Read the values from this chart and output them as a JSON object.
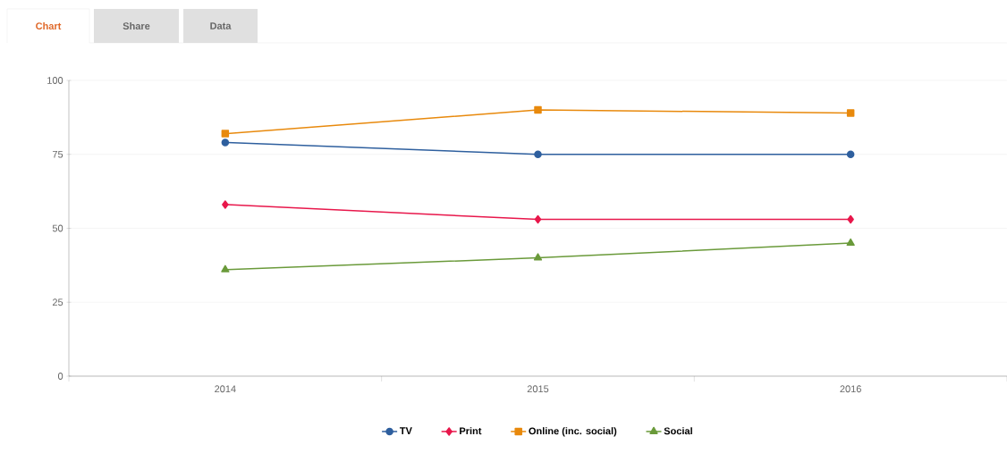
{
  "chart_data": {
    "type": "line",
    "categories": [
      "2014",
      "2015",
      "2016"
    ],
    "series": [
      {
        "name": "TV",
        "color": "#2e5f9e",
        "marker": "circle",
        "values": [
          79,
          75,
          75
        ]
      },
      {
        "name": "Print",
        "color": "#e8174b",
        "marker": "diamond",
        "values": [
          58,
          53,
          53
        ]
      },
      {
        "name": "Online (inc. social)",
        "color": "#e8890c",
        "marker": "square",
        "values": [
          82,
          90,
          89
        ]
      },
      {
        "name": "Social",
        "color": "#6a9a3a",
        "marker": "triangle",
        "values": [
          36,
          40,
          45
        ]
      }
    ],
    "ylim": [
      0,
      100
    ],
    "yticks": [
      0,
      25,
      50,
      75,
      100
    ],
    "grid": "y",
    "legend": "bottom",
    "line_style": "solid",
    "annotations": [
      "Chart",
      "Share",
      "Data"
    ]
  }
}
